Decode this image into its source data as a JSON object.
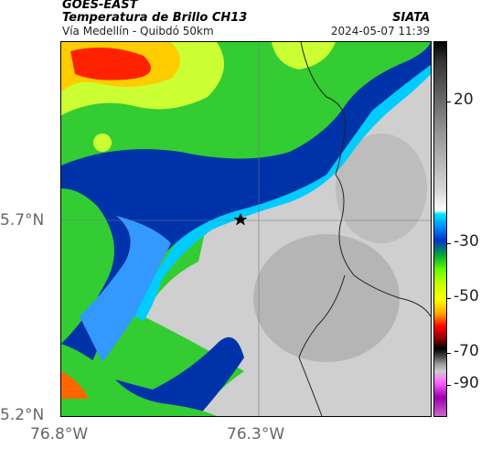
{
  "header": {
    "satellite": "GOES-EAST",
    "product": "Temperatura de Brillo CH13",
    "route": "Vía Medellín - Quibdó 50km",
    "agency": "SIATA",
    "datetime": "2024-05-07 11:39"
  },
  "axes": {
    "lat_labels": [
      "5.7°N",
      "5.2°N"
    ],
    "lon_labels": [
      "76.8°W",
      "76.3°W"
    ]
  },
  "colorbar": {
    "labels": [
      "20",
      "-30",
      "-50",
      "-70",
      "-90"
    ]
  },
  "colors": {
    "cold_red": "#ff0000",
    "green": "#33cc33",
    "blue": "#003399",
    "cyan": "#00ccff",
    "warm_gray": "#d0d0d0"
  },
  "icons": {
    "location_marker": "star-icon"
  }
}
